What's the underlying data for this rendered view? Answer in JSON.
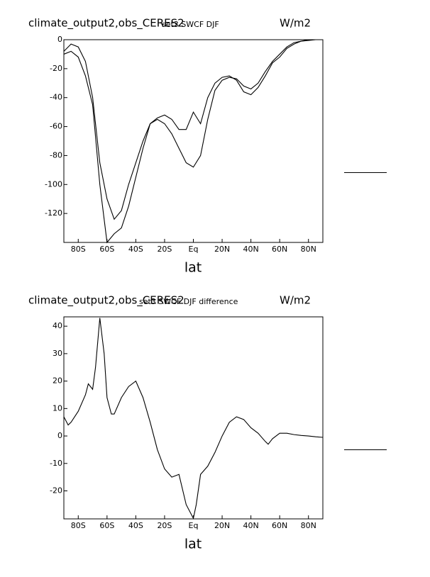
{
  "chart_data": [
    {
      "type": "line",
      "title": "climate_output2,obs_CERES2",
      "subtitle": "set3 SWCF DJF",
      "units_label": "W/m2",
      "xlabel": "lat",
      "x": [
        -90,
        -85,
        -80,
        -75,
        -70,
        -65,
        -60,
        -55,
        -50,
        -45,
        -40,
        -35,
        -30,
        -25,
        -20,
        -15,
        -10,
        -5,
        0,
        5,
        10,
        15,
        20,
        25,
        30,
        35,
        40,
        45,
        50,
        55,
        60,
        65,
        70,
        75,
        80,
        85,
        90
      ],
      "series": [
        {
          "color": "#000000",
          "values": [
            -8,
            -3,
            -5,
            -15,
            -40,
            -85,
            -110,
            -124,
            -118,
            -100,
            -85,
            -70,
            -58,
            -55,
            -58,
            -65,
            -75,
            -85,
            -88,
            -80,
            -55,
            -35,
            -28,
            -26,
            -27,
            -32,
            -34,
            -30,
            -22,
            -15,
            -10,
            -5,
            -2,
            -1,
            -0.5,
            0,
            0
          ]
        },
        {
          "color": "#000000",
          "values": [
            -10,
            -8,
            -12,
            -25,
            -45,
            -100,
            -140,
            -134,
            -130,
            -115,
            -95,
            -75,
            -58,
            -54,
            -52,
            -55,
            -62,
            -62,
            -50,
            -58,
            -40,
            -30,
            -26,
            -25,
            -28,
            -36,
            -38,
            -33,
            -25,
            -16,
            -12,
            -6,
            -3,
            -1,
            0,
            0,
            0
          ]
        }
      ],
      "xlim": [
        -90,
        90
      ],
      "ylim": [
        -140,
        0
      ],
      "xticks": [
        {
          "value": -80,
          "label": "80S"
        },
        {
          "value": -60,
          "label": "60S"
        },
        {
          "value": -40,
          "label": "40S"
        },
        {
          "value": -20,
          "label": "20S"
        },
        {
          "value": 0,
          "label": "Eq"
        },
        {
          "value": 20,
          "label": "20N"
        },
        {
          "value": 40,
          "label": "40N"
        },
        {
          "value": 60,
          "label": "60N"
        },
        {
          "value": 80,
          "label": "80N"
        }
      ],
      "yticks": [
        0,
        -20,
        -40,
        -60,
        -80,
        -100,
        -120
      ]
    },
    {
      "type": "line",
      "title": "climate_output2,obs_CERES2",
      "subtitle": "set3 SWCF DJF difference",
      "units_label": "W/m2",
      "xlabel": "lat",
      "x": [
        -90,
        -87,
        -85,
        -80,
        -75,
        -73,
        -70,
        -68,
        -65,
        -62,
        -60,
        -57,
        -55,
        -50,
        -45,
        -40,
        -35,
        -30,
        -25,
        -20,
        -15,
        -10,
        -5,
        0,
        2,
        5,
        10,
        15,
        20,
        25,
        30,
        35,
        40,
        45,
        50,
        52,
        55,
        60,
        65,
        70,
        75,
        80,
        85,
        90
      ],
      "series": [
        {
          "color": "#000000",
          "values": [
            7,
            4,
            5,
            9,
            15,
            19,
            17,
            25,
            43,
            30,
            14,
            8,
            8,
            14,
            18,
            20,
            14,
            5,
            -5,
            -12,
            -15,
            -14,
            -25,
            -30,
            -25,
            -14,
            -11,
            -6,
            0,
            5,
            7,
            6,
            3,
            1,
            -2,
            -3,
            -1,
            1,
            1,
            0.5,
            0.2,
            0,
            -0.3,
            -0.5
          ]
        }
      ],
      "xlim": [
        -90,
        90
      ],
      "ylim": [
        -30.2,
        43.4
      ],
      "xticks": [
        {
          "value": -80,
          "label": "80S"
        },
        {
          "value": -60,
          "label": "60S"
        },
        {
          "value": -40,
          "label": "40S"
        },
        {
          "value": -20,
          "label": "20S"
        },
        {
          "value": 0,
          "label": "Eq"
        },
        {
          "value": 20,
          "label": "20N"
        },
        {
          "value": 40,
          "label": "40N"
        },
        {
          "value": 60,
          "label": "60N"
        },
        {
          "value": 80,
          "label": "80N"
        }
      ],
      "yticks": [
        40,
        30,
        20,
        10,
        0,
        -10,
        -20
      ]
    }
  ]
}
